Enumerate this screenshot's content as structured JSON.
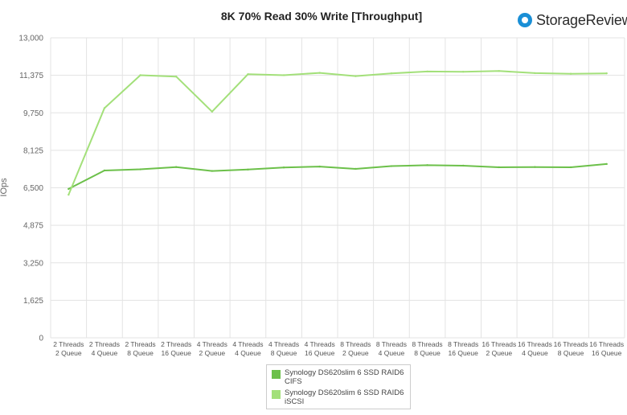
{
  "logo": {
    "name": "StorageReview",
    "icon": "storagereview-logo-icon"
  },
  "chart_data": {
    "type": "line",
    "title": "8K 70% Read 30% Write [Throughput]",
    "ylabel": "IOps",
    "xlabel": "",
    "ylim": [
      0,
      13000
    ],
    "yticks": [
      0,
      1625,
      3250,
      4875,
      6500,
      8125,
      9750,
      11375,
      13000
    ],
    "ytick_labels": [
      "0",
      "1,625",
      "3,250",
      "4,875",
      "6,500",
      "8,125",
      "9,750",
      "11,375",
      "13,000"
    ],
    "grid": true,
    "legend_position": "bottom",
    "categories": [
      "2 Threads\n2 Queue",
      "2 Threads\n4 Queue",
      "2 Threads\n8 Queue",
      "2 Threads\n16 Queue",
      "4 Threads\n2 Queue",
      "4 Threads\n4 Queue",
      "4 Threads\n8 Queue",
      "4 Threads\n16 Queue",
      "8 Threads\n2 Queue",
      "8 Threads\n4 Queue",
      "8 Threads\n8 Queue",
      "8 Threads\n16 Queue",
      "16 Threads\n2 Queue",
      "16 Threads\n4 Queue",
      "16 Threads\n8 Queue",
      "16 Threads\n16 Queue"
    ],
    "series": [
      {
        "name": "Synology DS620slim 6 SSD RAID6\nCIFS",
        "color": "#6cc04a",
        "values": [
          6450,
          7250,
          7300,
          7400,
          7230,
          7290,
          7380,
          7420,
          7320,
          7440,
          7480,
          7460,
          7390,
          7400,
          7390,
          7530
        ]
      },
      {
        "name": "Synology DS620slim 6 SSD RAID6\niSCSI",
        "color": "#a3e07a",
        "values": [
          6200,
          9950,
          11380,
          11320,
          9800,
          11420,
          11380,
          11480,
          11340,
          11460,
          11540,
          11530,
          11560,
          11470,
          11440,
          11460
        ]
      }
    ]
  }
}
